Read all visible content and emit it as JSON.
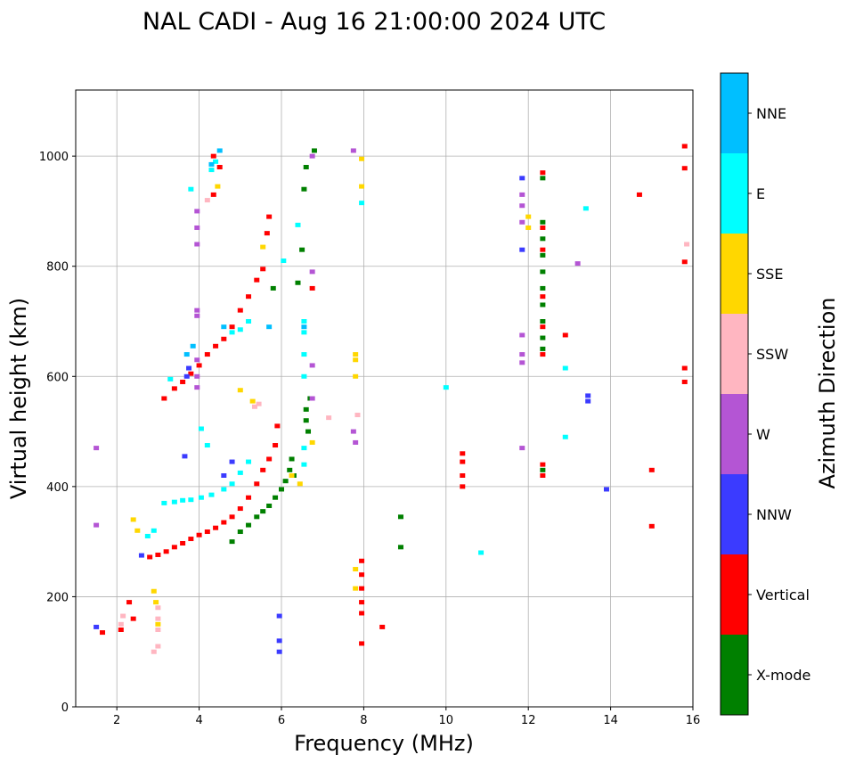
{
  "chart_data": {
    "type": "scatter",
    "title": "NAL CADI - Aug 16 21:00:00 2024 UTC",
    "xlabel": "Frequency (MHz)",
    "ylabel": "Virtual height (km)",
    "xlim": [
      1,
      16
    ],
    "ylim": [
      0,
      1120
    ],
    "xticks": [
      2,
      4,
      6,
      8,
      10,
      12,
      14,
      16
    ],
    "yticks": [
      0,
      200,
      400,
      600,
      800,
      1000
    ],
    "grid": true,
    "colorbar": {
      "label": "Azimuth Direction",
      "position": "right",
      "categories": [
        "X-mode",
        "Vertical",
        "NNW",
        "W",
        "SSW",
        "SSE",
        "E",
        "NNE"
      ],
      "colors": [
        "#008000",
        "#ff0000",
        "#3b3bff",
        "#b455d4",
        "#ffb6c1",
        "#ffd700",
        "#00ffff",
        "#00bfff"
      ]
    },
    "series": [
      {
        "name": "X-mode",
        "points": [
          [
            4.8,
            300
          ],
          [
            5.0,
            318
          ],
          [
            5.2,
            330
          ],
          [
            5.4,
            345
          ],
          [
            5.55,
            355
          ],
          [
            5.7,
            365
          ],
          [
            5.85,
            380
          ],
          [
            6.0,
            395
          ],
          [
            6.1,
            410
          ],
          [
            6.2,
            430
          ],
          [
            6.25,
            450
          ],
          [
            6.3,
            420
          ],
          [
            6.6,
            540
          ],
          [
            6.6,
            520
          ],
          [
            6.65,
            500
          ],
          [
            6.7,
            560
          ],
          [
            6.8,
            1010
          ],
          [
            6.6,
            980
          ],
          [
            6.55,
            940
          ],
          [
            6.5,
            830
          ],
          [
            6.4,
            770
          ],
          [
            5.8,
            760
          ],
          [
            8.9,
            345
          ],
          [
            8.9,
            290
          ],
          [
            12.35,
            960
          ],
          [
            12.35,
            880
          ],
          [
            12.35,
            850
          ],
          [
            12.35,
            820
          ],
          [
            12.35,
            790
          ],
          [
            12.35,
            760
          ],
          [
            12.35,
            730
          ],
          [
            12.35,
            700
          ],
          [
            12.35,
            670
          ],
          [
            12.35,
            650
          ],
          [
            12.35,
            430
          ]
        ]
      },
      {
        "name": "Vertical",
        "points": [
          [
            2.8,
            272
          ],
          [
            3.0,
            276
          ],
          [
            3.2,
            282
          ],
          [
            3.4,
            290
          ],
          [
            3.6,
            297
          ],
          [
            3.8,
            305
          ],
          [
            4.0,
            312
          ],
          [
            4.2,
            318
          ],
          [
            4.4,
            325
          ],
          [
            4.6,
            335
          ],
          [
            4.8,
            345
          ],
          [
            5.0,
            360
          ],
          [
            5.2,
            380
          ],
          [
            5.4,
            405
          ],
          [
            5.55,
            430
          ],
          [
            5.7,
            450
          ],
          [
            5.85,
            475
          ],
          [
            5.9,
            510
          ],
          [
            3.15,
            560
          ],
          [
            3.4,
            578
          ],
          [
            3.6,
            590
          ],
          [
            3.8,
            605
          ],
          [
            4.0,
            620
          ],
          [
            4.2,
            640
          ],
          [
            4.4,
            655
          ],
          [
            4.6,
            668
          ],
          [
            4.8,
            690
          ],
          [
            5.0,
            720
          ],
          [
            5.2,
            745
          ],
          [
            5.4,
            775
          ],
          [
            5.55,
            795
          ],
          [
            5.65,
            860
          ],
          [
            5.7,
            890
          ],
          [
            6.75,
            760
          ],
          [
            4.35,
            930
          ],
          [
            4.5,
            980
          ],
          [
            4.35,
            1000
          ],
          [
            2.3,
            190
          ],
          [
            2.4,
            160
          ],
          [
            2.1,
            140
          ],
          [
            1.65,
            135
          ],
          [
            7.95,
            265
          ],
          [
            7.95,
            240
          ],
          [
            7.95,
            215
          ],
          [
            7.95,
            190
          ],
          [
            7.95,
            170
          ],
          [
            7.95,
            115
          ],
          [
            8.45,
            145
          ],
          [
            10.4,
            400
          ],
          [
            10.4,
            420
          ],
          [
            10.4,
            445
          ],
          [
            10.4,
            460
          ],
          [
            12.35,
            970
          ],
          [
            12.35,
            870
          ],
          [
            12.35,
            830
          ],
          [
            12.35,
            745
          ],
          [
            12.35,
            690
          ],
          [
            12.35,
            640
          ],
          [
            12.35,
            440
          ],
          [
            12.35,
            420
          ],
          [
            12.9,
            675
          ],
          [
            14.7,
            930
          ],
          [
            15.0,
            430
          ],
          [
            15.0,
            328
          ],
          [
            15.8,
            1018
          ],
          [
            15.8,
            978
          ],
          [
            15.8,
            808
          ],
          [
            15.8,
            615
          ],
          [
            15.8,
            590
          ]
        ]
      },
      {
        "name": "NNW",
        "points": [
          [
            1.5,
            145
          ],
          [
            5.95,
            165
          ],
          [
            5.95,
            120
          ],
          [
            5.95,
            100
          ],
          [
            3.65,
            455
          ],
          [
            3.7,
            600
          ],
          [
            3.75,
            615
          ],
          [
            11.85,
            960
          ],
          [
            11.85,
            830
          ],
          [
            13.45,
            555
          ],
          [
            13.45,
            565
          ],
          [
            13.9,
            395
          ],
          [
            2.6,
            275
          ],
          [
            4.6,
            420
          ],
          [
            4.8,
            445
          ]
        ]
      },
      {
        "name": "W",
        "points": [
          [
            3.95,
            840
          ],
          [
            3.95,
            870
          ],
          [
            3.95,
            900
          ],
          [
            3.95,
            710
          ],
          [
            3.95,
            720
          ],
          [
            3.95,
            630
          ],
          [
            3.95,
            600
          ],
          [
            3.95,
            580
          ],
          [
            6.75,
            790
          ],
          [
            6.75,
            620
          ],
          [
            6.75,
            560
          ],
          [
            6.75,
            1000
          ],
          [
            11.85,
            930
          ],
          [
            11.85,
            910
          ],
          [
            11.85,
            880
          ],
          [
            11.85,
            675
          ],
          [
            11.85,
            640
          ],
          [
            11.85,
            625
          ],
          [
            11.85,
            470
          ],
          [
            13.2,
            805
          ],
          [
            7.75,
            1010
          ],
          [
            7.75,
            500
          ],
          [
            7.8,
            480
          ],
          [
            1.5,
            330
          ],
          [
            1.5,
            470
          ]
        ]
      },
      {
        "name": "SSW",
        "points": [
          [
            2.9,
            100
          ],
          [
            3.0,
            110
          ],
          [
            3.0,
            140
          ],
          [
            3.0,
            160
          ],
          [
            3.0,
            180
          ],
          [
            2.1,
            150
          ],
          [
            2.15,
            165
          ],
          [
            5.35,
            545
          ],
          [
            5.45,
            550
          ],
          [
            7.15,
            525
          ],
          [
            7.85,
            530
          ],
          [
            4.2,
            920
          ],
          [
            15.85,
            840
          ]
        ]
      },
      {
        "name": "SSE",
        "points": [
          [
            3.0,
            150
          ],
          [
            2.95,
            190
          ],
          [
            2.9,
            210
          ],
          [
            2.4,
            340
          ],
          [
            2.5,
            320
          ],
          [
            5.0,
            575
          ],
          [
            5.3,
            555
          ],
          [
            5.55,
            835
          ],
          [
            6.25,
            420
          ],
          [
            6.45,
            405
          ],
          [
            6.75,
            480
          ],
          [
            7.8,
            600
          ],
          [
            7.8,
            630
          ],
          [
            7.8,
            640
          ],
          [
            7.8,
            250
          ],
          [
            7.8,
            215
          ],
          [
            7.95,
            995
          ],
          [
            7.95,
            945
          ],
          [
            4.45,
            945
          ],
          [
            12.0,
            890
          ],
          [
            12.0,
            870
          ]
        ]
      },
      {
        "name": "E",
        "points": [
          [
            3.15,
            370
          ],
          [
            3.4,
            372
          ],
          [
            3.6,
            375
          ],
          [
            3.8,
            376
          ],
          [
            4.05,
            380
          ],
          [
            4.3,
            385
          ],
          [
            4.6,
            395
          ],
          [
            4.8,
            405
          ],
          [
            5.0,
            425
          ],
          [
            5.2,
            445
          ],
          [
            4.8,
            680
          ],
          [
            5.0,
            685
          ],
          [
            5.2,
            700
          ],
          [
            4.4,
            990
          ],
          [
            4.3,
            975
          ],
          [
            3.8,
            940
          ],
          [
            6.4,
            875
          ],
          [
            6.05,
            810
          ],
          [
            6.55,
            700
          ],
          [
            6.55,
            680
          ],
          [
            6.55,
            640
          ],
          [
            6.55,
            600
          ],
          [
            6.55,
            470
          ],
          [
            6.55,
            440
          ],
          [
            10.0,
            580
          ],
          [
            10.85,
            280
          ],
          [
            12.9,
            615
          ],
          [
            12.9,
            490
          ],
          [
            13.4,
            905
          ],
          [
            7.95,
            915
          ],
          [
            2.75,
            310
          ],
          [
            2.9,
            320
          ],
          [
            3.3,
            595
          ],
          [
            4.05,
            505
          ],
          [
            4.2,
            475
          ]
        ]
      },
      {
        "name": "NNE",
        "points": [
          [
            4.3,
            985
          ],
          [
            4.5,
            1010
          ],
          [
            3.7,
            640
          ],
          [
            3.85,
            655
          ],
          [
            4.6,
            690
          ],
          [
            5.7,
            690
          ],
          [
            6.55,
            690
          ]
        ]
      }
    ]
  }
}
